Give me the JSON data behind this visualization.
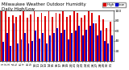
{
  "title": "Milwaukee Weather Outdoor Humidity",
  "subtitle": "Daily High/Low",
  "high_values": [
    98,
    99,
    87,
    90,
    87,
    91,
    99,
    86,
    92,
    99,
    87,
    95,
    89,
    99,
    88,
    96,
    93,
    99,
    87,
    91,
    99,
    95,
    85,
    91,
    99,
    95,
    75,
    90,
    83,
    65,
    78
  ],
  "low_values": [
    38,
    55,
    30,
    75,
    35,
    42,
    55,
    35,
    40,
    60,
    45,
    55,
    35,
    50,
    55,
    65,
    55,
    62,
    42,
    55,
    60,
    70,
    50,
    62,
    70,
    75,
    50,
    60,
    40,
    35,
    50
  ],
  "xlabels": [
    "1",
    "2",
    "3",
    "4",
    "5",
    "6",
    "7",
    "8",
    "9",
    "10",
    "11",
    "12",
    "13",
    "14",
    "15",
    "16",
    "17",
    "18",
    "19",
    "20",
    "21",
    "22",
    "23",
    "24",
    "25",
    "26",
    "27",
    "28",
    "29",
    "30",
    "31"
  ],
  "ylim": [
    0,
    100
  ],
  "yticks": [
    20,
    40,
    60,
    80,
    100
  ],
  "high_color": "#dd0000",
  "low_color": "#0000cc",
  "background_color": "#ffffff",
  "grid_color": "#aaaaaa",
  "legend_high": "High",
  "legend_low": "Low",
  "bar_width": 0.42,
  "title_fontsize": 4.0,
  "tick_fontsize": 3.2
}
